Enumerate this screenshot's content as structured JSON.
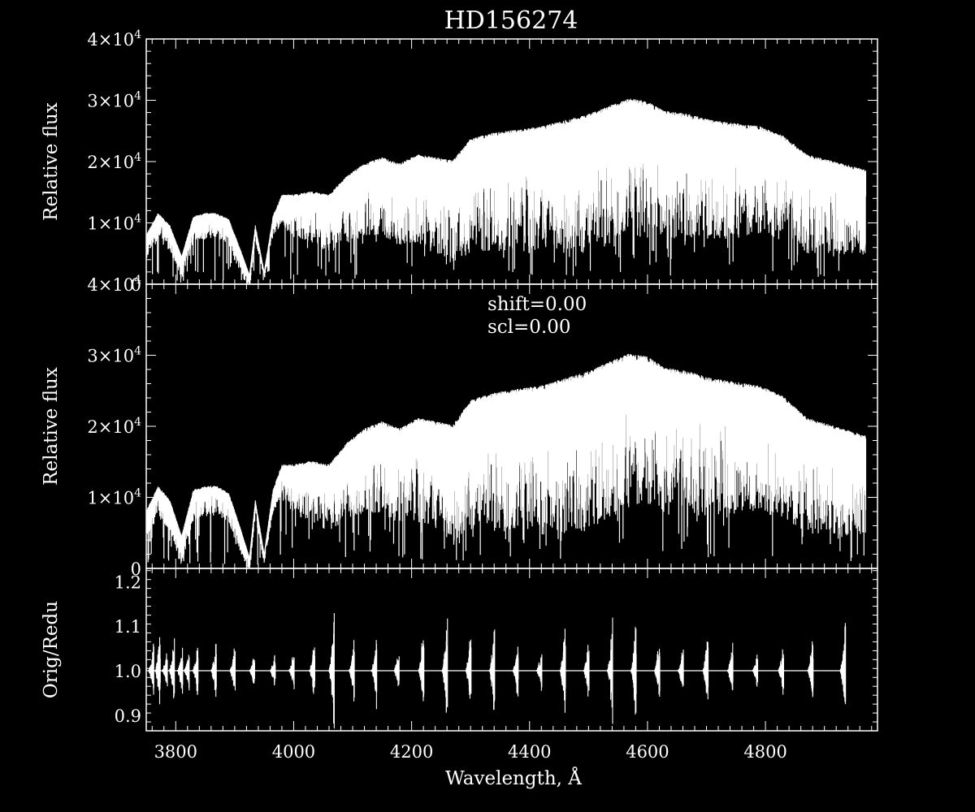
{
  "colors": {
    "background": "#000000",
    "foreground": "#ffffff"
  },
  "chart_data": [
    {
      "type": "line",
      "panel": "top",
      "title": "HD156274",
      "ylabel": "Relative flux",
      "xlim": [
        3750,
        4990
      ],
      "ylim": [
        0,
        40000
      ],
      "yticks": [
        {
          "value": 0,
          "label": "0"
        },
        {
          "value": 10000,
          "label": "1×10",
          "exp": "4"
        },
        {
          "value": 20000,
          "label": "2×10",
          "exp": "4"
        },
        {
          "value": 30000,
          "label": "3×10",
          "exp": "4"
        },
        {
          "value": 40000,
          "label": "4×10",
          "exp": "4"
        }
      ],
      "series": [
        {
          "continuum": {
            "x": [
              3750,
              3770,
              3790,
              3810,
              3830,
              3850,
              3870,
              3890,
              3910,
              3925,
              3935,
              3950,
              3965,
              3980,
              4000,
              4030,
              4060,
              4090,
              4120,
              4150,
              4180,
              4210,
              4240,
              4270,
              4300,
              4340,
              4380,
              4420,
              4460,
              4500,
              4540,
              4570,
              4600,
              4630,
              4670,
              4710,
              4750,
              4790,
              4830,
              4870,
              4910,
              4950,
              4970
            ],
            "y": [
              8000,
              11500,
              9500,
              4500,
              11000,
              11500,
              11500,
              10500,
              5500,
              1500,
              9500,
              2000,
              11000,
              14500,
              14500,
              15000,
              14500,
              17500,
              19500,
              20500,
              19500,
              21000,
              20500,
              20000,
              23500,
              24500,
              25000,
              25500,
              26500,
              27500,
              29000,
              30000,
              29500,
              28000,
              27500,
              26500,
              26000,
              25500,
              24000,
              21000,
              20000,
              19000,
              18500
            ]
          },
          "depth": {
            "x": [
              3750,
              3900,
              3950,
              4000,
              4100,
              4200,
              4300,
              4500,
              4700,
              4970
            ],
            "y": [
              3000,
              3000,
              1000,
              5000,
              8000,
              10000,
              13000,
              16000,
              14000,
              10000
            ]
          }
        }
      ]
    },
    {
      "type": "line",
      "panel": "middle",
      "ylabel": "Relative flux",
      "annotations": [
        "shift=0.00",
        "scl=0.00"
      ],
      "xlim": [
        3750,
        4990
      ],
      "ylim": [
        0,
        40000
      ],
      "yticks": [
        {
          "value": 0,
          "label": "0"
        },
        {
          "value": 10000,
          "label": "1×10",
          "exp": "4"
        },
        {
          "value": 20000,
          "label": "2×10",
          "exp": "4"
        },
        {
          "value": 30000,
          "label": "3×10",
          "exp": "4"
        },
        {
          "value": 40000,
          "label": "4×10",
          "exp": "4"
        }
      ],
      "series": [
        {
          "continuum": {
            "x": [
              3750,
              3770,
              3790,
              3810,
              3830,
              3850,
              3870,
              3890,
              3910,
              3925,
              3935,
              3950,
              3965,
              3980,
              4000,
              4030,
              4060,
              4090,
              4120,
              4150,
              4180,
              4210,
              4240,
              4270,
              4300,
              4340,
              4380,
              4420,
              4460,
              4500,
              4540,
              4570,
              4600,
              4630,
              4670,
              4710,
              4750,
              4790,
              4830,
              4870,
              4910,
              4950,
              4970
            ],
            "y": [
              8000,
              11500,
              9500,
              4500,
              11000,
              11500,
              11500,
              10500,
              5500,
              1500,
              9500,
              2000,
              11000,
              14500,
              14500,
              15000,
              14500,
              17500,
              19500,
              20500,
              19500,
              21000,
              20500,
              20000,
              23500,
              24500,
              25000,
              25500,
              26500,
              27500,
              29000,
              30000,
              29500,
              28000,
              27500,
              26500,
              26000,
              25500,
              24000,
              21000,
              20000,
              19000,
              18500
            ]
          },
          "depth": {
            "x": [
              3750,
              3900,
              3950,
              4000,
              4100,
              4200,
              4300,
              4500,
              4700,
              4970
            ],
            "y": [
              3000,
              3000,
              1000,
              5000,
              8000,
              10000,
              13000,
              16000,
              14000,
              10000
            ]
          }
        }
      ]
    },
    {
      "type": "line",
      "panel": "bottom",
      "ylabel": "Orig/Redu",
      "xlabel": "Wavelength, Å",
      "xlim": [
        3750,
        4990
      ],
      "ylim": [
        0.865,
        1.23
      ],
      "xticks": [
        {
          "value": 3800,
          "label": "3800"
        },
        {
          "value": 4000,
          "label": "4000"
        },
        {
          "value": 4200,
          "label": "4200"
        },
        {
          "value": 4400,
          "label": "4400"
        },
        {
          "value": 4600,
          "label": "4600"
        },
        {
          "value": 4800,
          "label": "4800"
        }
      ],
      "yticks": [
        {
          "value": 0.9,
          "label": "0.9"
        },
        {
          "value": 1.0,
          "label": "1.0"
        },
        {
          "value": 1.1,
          "label": "1.1"
        },
        {
          "value": 1.2,
          "label": "1.2"
        }
      ],
      "baseline": 1.0,
      "bursts": [
        {
          "x": 3762,
          "amp": 0.06
        },
        {
          "x": 3773,
          "amp": 0.08
        },
        {
          "x": 3785,
          "amp": 0.05
        },
        {
          "x": 3797,
          "amp": 0.07
        },
        {
          "x": 3811,
          "amp": 0.06
        },
        {
          "x": 3822,
          "amp": 0.04
        },
        {
          "x": 3837,
          "amp": 0.06
        },
        {
          "x": 3868,
          "amp": 0.07
        },
        {
          "x": 3900,
          "amp": 0.06
        },
        {
          "x": 3933,
          "amp": 0.04
        },
        {
          "x": 3968,
          "amp": 0.04
        },
        {
          "x": 4000,
          "amp": 0.05
        },
        {
          "x": 4035,
          "amp": 0.07
        },
        {
          "x": 4068,
          "amp": 0.13
        },
        {
          "x": 4102,
          "amp": 0.07
        },
        {
          "x": 4140,
          "amp": 0.08
        },
        {
          "x": 4178,
          "amp": 0.05
        },
        {
          "x": 4220,
          "amp": 0.11
        },
        {
          "x": 4260,
          "amp": 0.13
        },
        {
          "x": 4300,
          "amp": 0.11
        },
        {
          "x": 4340,
          "amp": 0.11
        },
        {
          "x": 4380,
          "amp": 0.07
        },
        {
          "x": 4420,
          "amp": 0.05
        },
        {
          "x": 4460,
          "amp": 0.11
        },
        {
          "x": 4500,
          "amp": 0.08
        },
        {
          "x": 4540,
          "amp": 0.11
        },
        {
          "x": 4580,
          "amp": 0.11
        },
        {
          "x": 4620,
          "amp": 0.08
        },
        {
          "x": 4660,
          "amp": 0.06
        },
        {
          "x": 4702,
          "amp": 0.09
        },
        {
          "x": 4744,
          "amp": 0.07
        },
        {
          "x": 4786,
          "amp": 0.04
        },
        {
          "x": 4830,
          "amp": 0.06
        },
        {
          "x": 4880,
          "amp": 0.09
        },
        {
          "x": 4935,
          "amp": 0.11
        }
      ]
    }
  ]
}
